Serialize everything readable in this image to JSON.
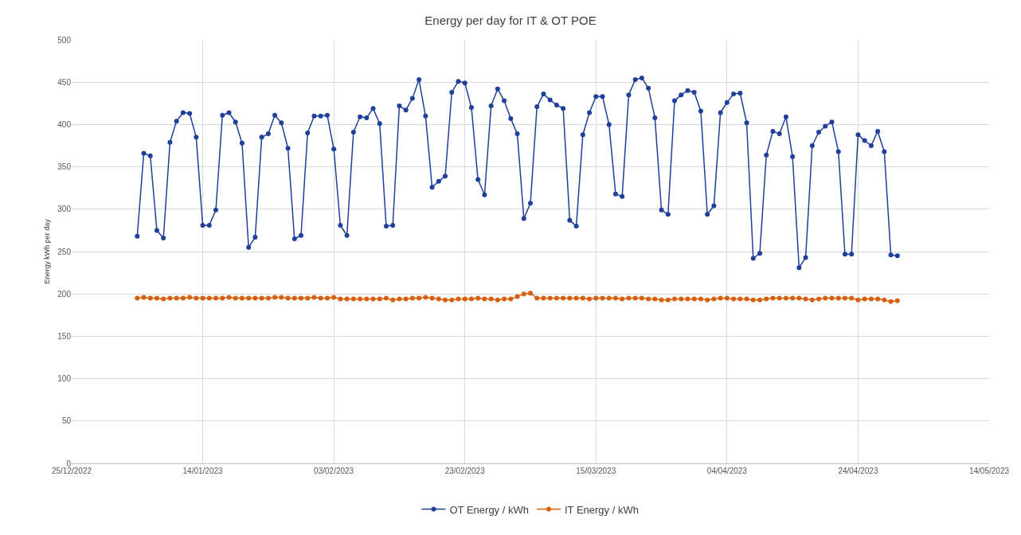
{
  "chart_data": {
    "type": "line",
    "title": "Energy per day for IT & OT POE",
    "ylabel": "Energy kWh per day",
    "x": [
      "2023-01-04",
      "2023-01-05",
      "2023-01-06",
      "2023-01-07",
      "2023-01-08",
      "2023-01-09",
      "2023-01-10",
      "2023-01-11",
      "2023-01-12",
      "2023-01-13",
      "2023-01-14",
      "2023-01-15",
      "2023-01-16",
      "2023-01-17",
      "2023-01-18",
      "2023-01-19",
      "2023-01-20",
      "2023-01-21",
      "2023-01-22",
      "2023-01-23",
      "2023-01-24",
      "2023-01-25",
      "2023-01-26",
      "2023-01-27",
      "2023-01-28",
      "2023-01-29",
      "2023-01-30",
      "2023-01-31",
      "2023-02-01",
      "2023-02-02",
      "2023-02-03",
      "2023-02-04",
      "2023-02-05",
      "2023-02-06",
      "2023-02-07",
      "2023-02-08",
      "2023-02-09",
      "2023-02-10",
      "2023-02-11",
      "2023-02-12",
      "2023-02-13",
      "2023-02-14",
      "2023-02-15",
      "2023-02-16",
      "2023-02-17",
      "2023-02-18",
      "2023-02-19",
      "2023-02-20",
      "2023-02-21",
      "2023-02-22",
      "2023-02-23",
      "2023-02-24",
      "2023-02-25",
      "2023-02-26",
      "2023-02-27",
      "2023-02-28",
      "2023-03-01",
      "2023-03-02",
      "2023-03-03",
      "2023-03-04",
      "2023-03-05",
      "2023-03-06",
      "2023-03-07",
      "2023-03-08",
      "2023-03-09",
      "2023-03-10",
      "2023-03-11",
      "2023-03-12",
      "2023-03-13",
      "2023-03-14",
      "2023-03-15",
      "2023-03-16",
      "2023-03-17",
      "2023-03-18",
      "2023-03-19",
      "2023-03-20",
      "2023-03-21",
      "2023-03-22",
      "2023-03-23",
      "2023-03-24",
      "2023-03-25",
      "2023-03-26",
      "2023-03-27",
      "2023-03-28",
      "2023-03-29",
      "2023-03-30",
      "2023-03-31",
      "2023-04-01",
      "2023-04-02",
      "2023-04-03",
      "2023-04-04",
      "2023-04-05",
      "2023-04-06",
      "2023-04-07",
      "2023-04-08",
      "2023-04-09",
      "2023-04-10",
      "2023-04-11",
      "2023-04-12",
      "2023-04-13",
      "2023-04-14",
      "2023-04-15",
      "2023-04-16",
      "2023-04-17",
      "2023-04-18",
      "2023-04-19",
      "2023-04-20",
      "2023-04-21",
      "2023-04-22",
      "2023-04-23",
      "2023-04-24",
      "2023-04-25",
      "2023-04-26",
      "2023-04-27",
      "2023-04-28",
      "2023-04-29",
      "2023-04-30"
    ],
    "series": [
      {
        "name": "OT Energy / kWh",
        "color": "#1f3f9a",
        "values": [
          268,
          366,
          363,
          275,
          266,
          379,
          404,
          414,
          413,
          385,
          281,
          281,
          299,
          411,
          414,
          403,
          378,
          255,
          267,
          385,
          389,
          411,
          402,
          372,
          265,
          269,
          390,
          410,
          410,
          411,
          371,
          281,
          269,
          391,
          409,
          408,
          419,
          401,
          280,
          281,
          422,
          417,
          431,
          453,
          410,
          326,
          333,
          339,
          438,
          451,
          449,
          420,
          335,
          317,
          422,
          442,
          428,
          407,
          389,
          289,
          307,
          421,
          436,
          429,
          423,
          419,
          287,
          280,
          388,
          414,
          433,
          433,
          400,
          318,
          315,
          435,
          453,
          455,
          443,
          408,
          299,
          294,
          428,
          435,
          440,
          438,
          416,
          294,
          304,
          414,
          426,
          436,
          437,
          402,
          242,
          248,
          364,
          392,
          389,
          409,
          362,
          231,
          243,
          375,
          391,
          398,
          403,
          368,
          247,
          247,
          388,
          381,
          375,
          392,
          368,
          246,
          245
        ]
      },
      {
        "name": "IT Energy / kWh",
        "color": "#d5600f",
        "values": [
          195,
          196,
          195,
          195,
          194,
          195,
          195,
          195,
          196,
          195,
          195,
          195,
          195,
          195,
          196,
          195,
          195,
          195,
          195,
          195,
          195,
          196,
          196,
          195,
          195,
          195,
          195,
          196,
          195,
          195,
          196,
          194,
          194,
          194,
          194,
          194,
          194,
          194,
          195,
          193,
          194,
          194,
          195,
          195,
          196,
          195,
          194,
          193,
          193,
          194,
          194,
          194,
          195,
          194,
          194,
          193,
          194,
          194,
          197,
          200,
          201,
          195,
          195,
          195,
          195,
          195,
          195,
          195,
          195,
          194,
          195,
          195,
          195,
          195,
          194,
          195,
          195,
          195,
          194,
          194,
          193,
          193,
          194,
          194,
          194,
          194,
          194,
          193,
          194,
          195,
          195,
          194,
          194,
          194,
          193,
          193,
          194,
          195,
          195,
          195,
          195,
          195,
          194,
          193,
          194,
          195,
          195,
          195,
          195,
          195,
          193,
          194,
          194,
          194,
          193,
          191,
          192
        ]
      }
    ],
    "xlim": [
      "2022-12-25",
      "2023-05-14"
    ],
    "xticks": [
      {
        "value": "2022-12-25",
        "label": "25/12/2022"
      },
      {
        "value": "2023-01-14",
        "label": "14/01/2023"
      },
      {
        "value": "2023-02-03",
        "label": "03/02/2023"
      },
      {
        "value": "2023-02-23",
        "label": "23/02/2023"
      },
      {
        "value": "2023-03-15",
        "label": "15/03/2023"
      },
      {
        "value": "2023-04-04",
        "label": "04/04/2023"
      },
      {
        "value": "2023-04-24",
        "label": "24/04/2023"
      },
      {
        "value": "2023-05-14",
        "label": "14/05/2023"
      }
    ],
    "ylim": [
      0,
      500
    ],
    "yticks": [
      0,
      50,
      100,
      150,
      200,
      250,
      300,
      350,
      400,
      450,
      500
    ],
    "grid": true,
    "legend": "bottom",
    "marker": "circle",
    "line_style": "solid"
  }
}
